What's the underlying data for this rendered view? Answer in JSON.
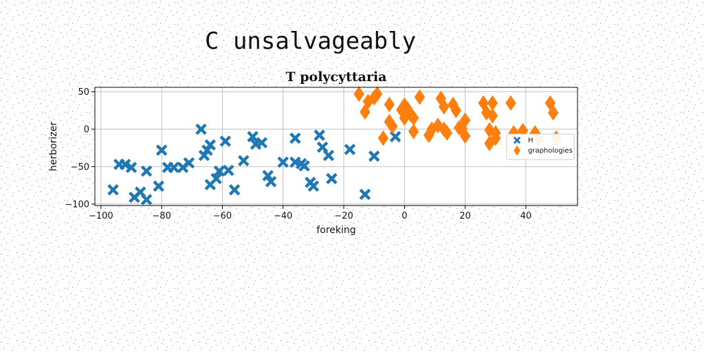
{
  "suptitle": "C unsalvageably",
  "chart_data": {
    "type": "scatter",
    "title": "T polycyttaria",
    "xlabel": "foreking",
    "ylabel": "herborizer",
    "xlim": [
      -102,
      57
    ],
    "ylim": [
      -102,
      56
    ],
    "xticks": [
      -100,
      -80,
      -60,
      -40,
      -20,
      0,
      20,
      40
    ],
    "yticks": [
      -100,
      -50,
      0,
      50
    ],
    "grid": true,
    "legend_position": "right",
    "series": [
      {
        "name": "H",
        "marker": "X",
        "color": "#1f77b4",
        "points": [
          {
            "x": -96,
            "y": -81
          },
          {
            "x": -94,
            "y": -47
          },
          {
            "x": -92,
            "y": -47
          },
          {
            "x": -90,
            "y": -51
          },
          {
            "x": -89,
            "y": -91
          },
          {
            "x": -87,
            "y": -84
          },
          {
            "x": -85,
            "y": -56
          },
          {
            "x": -85,
            "y": -94
          },
          {
            "x": -81,
            "y": -76
          },
          {
            "x": -80,
            "y": -28
          },
          {
            "x": -78,
            "y": -51
          },
          {
            "x": -76,
            "y": -51
          },
          {
            "x": -73,
            "y": -51
          },
          {
            "x": -71,
            "y": -45
          },
          {
            "x": -67,
            "y": 0
          },
          {
            "x": -66,
            "y": -35
          },
          {
            "x": -65,
            "y": -28
          },
          {
            "x": -64,
            "y": -21
          },
          {
            "x": -64,
            "y": -74
          },
          {
            "x": -62,
            "y": -66
          },
          {
            "x": -61,
            "y": -56
          },
          {
            "x": -59,
            "y": -16
          },
          {
            "x": -58,
            "y": -55
          },
          {
            "x": -56,
            "y": -81
          },
          {
            "x": -53,
            "y": -42
          },
          {
            "x": -50,
            "y": -10
          },
          {
            "x": -49,
            "y": -20
          },
          {
            "x": -47,
            "y": -18
          },
          {
            "x": -45,
            "y": -62
          },
          {
            "x": -44,
            "y": -70
          },
          {
            "x": -40,
            "y": -44
          },
          {
            "x": -36,
            "y": -12
          },
          {
            "x": -36,
            "y": -44
          },
          {
            "x": -34,
            "y": -46
          },
          {
            "x": -33,
            "y": -49
          },
          {
            "x": -31,
            "y": -71
          },
          {
            "x": -30,
            "y": -76
          },
          {
            "x": -28,
            "y": -8
          },
          {
            "x": -27,
            "y": -24
          },
          {
            "x": -25,
            "y": -35
          },
          {
            "x": -24,
            "y": -66
          },
          {
            "x": -18,
            "y": -27
          },
          {
            "x": -13,
            "y": -87
          },
          {
            "x": -10,
            "y": -36
          },
          {
            "x": -3,
            "y": -10
          }
        ]
      },
      {
        "name": "graphologies",
        "marker": "d",
        "color": "#ff7f0e",
        "points": [
          {
            "x": -15,
            "y": 47
          },
          {
            "x": -13,
            "y": 23
          },
          {
            "x": -12,
            "y": 37
          },
          {
            "x": -10,
            "y": 42
          },
          {
            "x": -9,
            "y": 47
          },
          {
            "x": -7,
            "y": -12
          },
          {
            "x": -5,
            "y": 33
          },
          {
            "x": -5,
            "y": 10
          },
          {
            "x": -4,
            "y": 4
          },
          {
            "x": -1,
            "y": 26
          },
          {
            "x": 0,
            "y": 15
          },
          {
            "x": 0,
            "y": 32
          },
          {
            "x": 1,
            "y": 27
          },
          {
            "x": 2,
            "y": 20
          },
          {
            "x": 3,
            "y": -3
          },
          {
            "x": 3,
            "y": 15
          },
          {
            "x": 5,
            "y": 43
          },
          {
            "x": 8,
            "y": -8
          },
          {
            "x": 9,
            "y": 0
          },
          {
            "x": 11,
            "y": 5
          },
          {
            "x": 12,
            "y": 41
          },
          {
            "x": 13,
            "y": 30
          },
          {
            "x": 13,
            "y": 0
          },
          {
            "x": 14,
            "y": -5
          },
          {
            "x": 16,
            "y": 33
          },
          {
            "x": 17,
            "y": 25
          },
          {
            "x": 18,
            "y": 2
          },
          {
            "x": 19,
            "y": 1
          },
          {
            "x": 20,
            "y": 12
          },
          {
            "x": 20,
            "y": -9
          },
          {
            "x": 26,
            "y": 35
          },
          {
            "x": 27,
            "y": 22
          },
          {
            "x": 28,
            "y": -1
          },
          {
            "x": 28,
            "y": -19
          },
          {
            "x": 29,
            "y": 35
          },
          {
            "x": 29,
            "y": 18
          },
          {
            "x": 30,
            "y": -5
          },
          {
            "x": 30,
            "y": -12
          },
          {
            "x": 35,
            "y": 35
          },
          {
            "x": 36,
            "y": -5
          },
          {
            "x": 39,
            "y": -2
          },
          {
            "x": 43,
            "y": -5
          },
          {
            "x": 44,
            "y": -12
          },
          {
            "x": 48,
            "y": 35
          },
          {
            "x": 49,
            "y": 22
          },
          {
            "x": 50,
            "y": -12
          }
        ]
      }
    ]
  }
}
